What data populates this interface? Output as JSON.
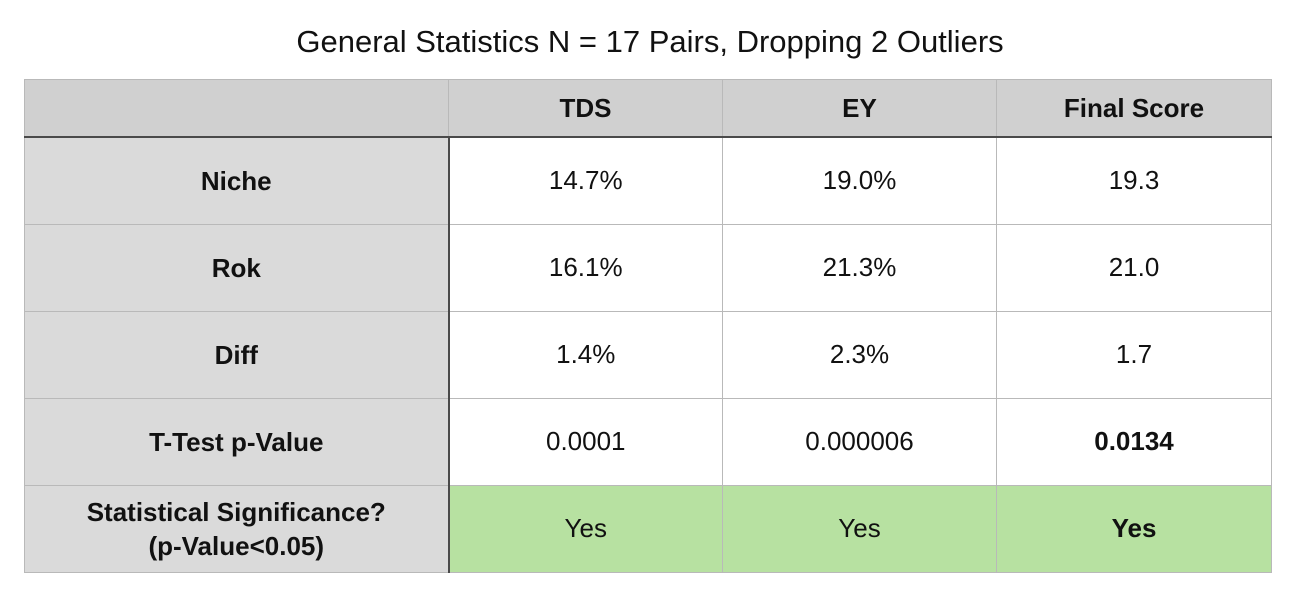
{
  "chart_data": {
    "type": "table",
    "title": "General Statistics N = 17 Pairs, Dropping 2 Outliers",
    "columns": [
      "",
      "TDS",
      "EY",
      "Final Score"
    ],
    "rows": [
      {
        "label": "Niche",
        "values": [
          "14.7%",
          "19.0%",
          "19.3"
        ]
      },
      {
        "label": "Rok",
        "values": [
          "16.1%",
          "21.3%",
          "21.0"
        ]
      },
      {
        "label": "Diff",
        "values": [
          "1.4%",
          "2.3%",
          "1.7"
        ]
      },
      {
        "label": "T-Test p-Value",
        "values": [
          "0.0001",
          "0.000006",
          "0.0134"
        ]
      },
      {
        "label": "Statistical Significance?",
        "sublabel": "(p-Value<0.05)",
        "values": [
          "Yes",
          "Yes",
          "Yes"
        ]
      }
    ],
    "colors": {
      "header_bg": "#d0d0d0",
      "row_label_bg": "#dadada",
      "significant_bg": "#b7e1a1"
    }
  }
}
